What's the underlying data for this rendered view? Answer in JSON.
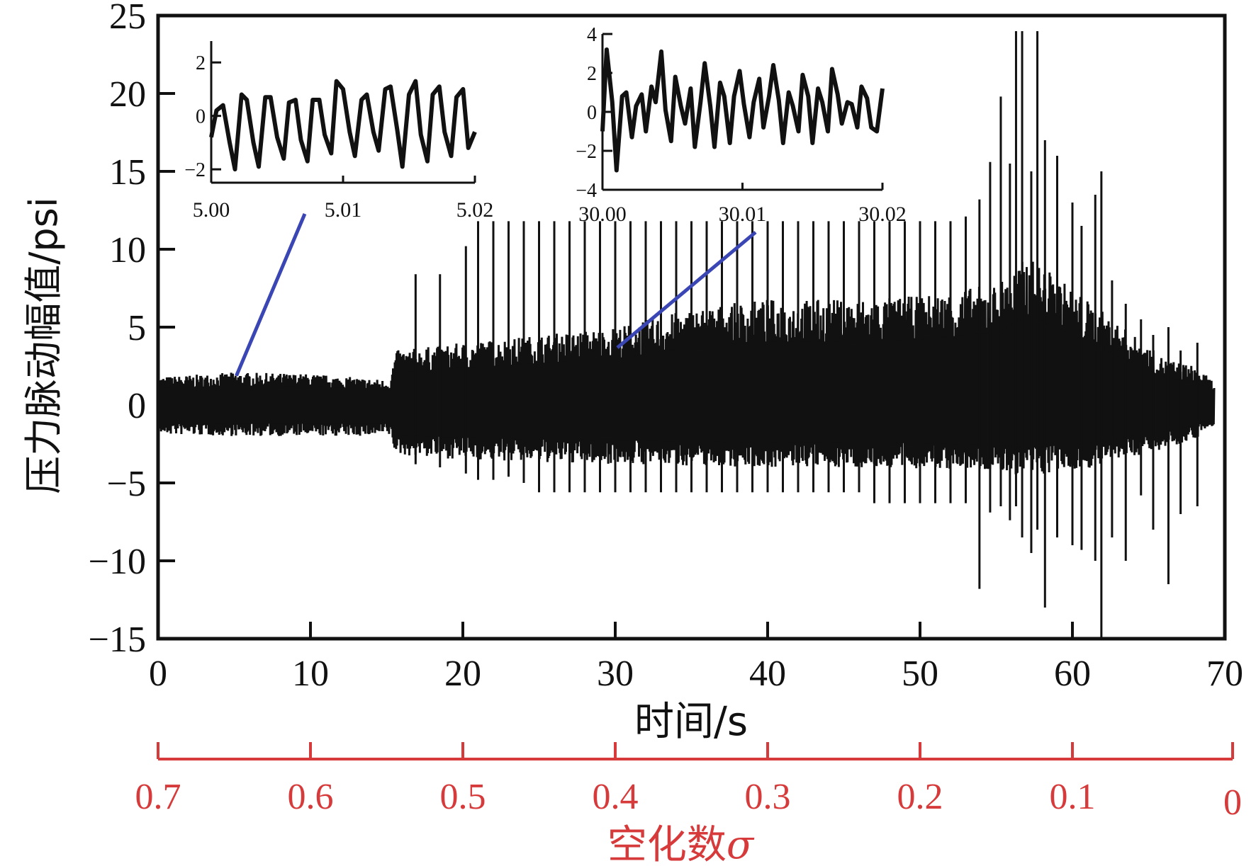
{
  "chart_data": {
    "type": "line",
    "xlabel": "时间/s",
    "ylabel": "压力脉动幅值/psi",
    "xlim": [
      0,
      70
    ],
    "ylim": [
      -15,
      25
    ],
    "x_ticks": [
      "0",
      "10",
      "20",
      "30",
      "40",
      "50",
      "60",
      "70"
    ],
    "y_ticks": [
      "25",
      "20",
      "15",
      "10",
      "5",
      "0",
      "−5",
      "−10",
      "−15"
    ],
    "grid": false,
    "signal_color": "#111111",
    "envelope": {
      "t": [
        0,
        5,
        10,
        15.2,
        15.6,
        20,
        25,
        30,
        35,
        40,
        45,
        50,
        53,
        55,
        57,
        58,
        60,
        62,
        64,
        66,
        68,
        69.3
      ],
      "upper": [
        1.8,
        2.1,
        2.0,
        1.6,
        3.5,
        4.0,
        4.5,
        5.0,
        6.2,
        6.8,
        6.8,
        7.0,
        7.5,
        7.8,
        9.5,
        9.0,
        7.5,
        6.0,
        4.5,
        3.0,
        2.5,
        1.5
      ],
      "lower": [
        -1.9,
        -2.0,
        -2.0,
        -2.0,
        -3.2,
        -3.5,
        -3.7,
        -3.8,
        -3.9,
        -4.0,
        -4.0,
        -4.1,
        -4.2,
        -4.3,
        -4.6,
        -4.5,
        -4.2,
        -3.9,
        -3.3,
        -2.8,
        -2.2,
        -1.3
      ]
    },
    "spikes": {
      "t": [
        16.9,
        18.5,
        20.2,
        21.0,
        22.0,
        23.0,
        24.0,
        25.0,
        26.0,
        27.0,
        28.0,
        29.0,
        30.0,
        31.0,
        32.0,
        33.0,
        34.0,
        35.0,
        36.0,
        37.0,
        38.0,
        39.0,
        40.0,
        41.0,
        42.0,
        43.0,
        44.0,
        45.0,
        46.0,
        47.0,
        48.0,
        49.0,
        50.0,
        51.0,
        52.0,
        53.0,
        53.9,
        54.6,
        55.3,
        55.9,
        56.3,
        56.7,
        57.3,
        57.7,
        58.2,
        59.0,
        60.0,
        60.6,
        61.5,
        61.9,
        62.6,
        63.5,
        64.5,
        65.3,
        66.3,
        67.1,
        68.2
      ],
      "upper": [
        8.4,
        8.4,
        10.2,
        11.8,
        11.8,
        11.8,
        11.8,
        11.8,
        11.8,
        11.8,
        11.8,
        11.8,
        11.8,
        11.8,
        11.8,
        11.8,
        11.8,
        11.8,
        11.8,
        11.8,
        11.8,
        11.8,
        11.8,
        11.8,
        11.8,
        11.8,
        11.8,
        11.8,
        11.8,
        11.8,
        11.8,
        11.8,
        11.8,
        11.8,
        11.8,
        12.1,
        13.2,
        15.6,
        19.8,
        15.5,
        24.0,
        24.0,
        15.0,
        24.0,
        17.0,
        16.0,
        13.0,
        11.5,
        13.5,
        15.0,
        8.0,
        6.5,
        5.5,
        4.5,
        5.0,
        3.5,
        4.0
      ],
      "lower": [
        -3.8,
        -4.0,
        -4.4,
        -4.8,
        -4.8,
        -4.6,
        -5.0,
        -5.6,
        -5.6,
        -5.6,
        -5.6,
        -5.6,
        -5.6,
        -5.6,
        -5.6,
        -5.6,
        -5.6,
        -5.6,
        -5.6,
        -5.6,
        -5.6,
        -5.6,
        -5.6,
        -5.6,
        -5.6,
        -5.6,
        -5.6,
        -5.6,
        -5.6,
        -6.3,
        -6.3,
        -6.3,
        -6.3,
        -6.3,
        -6.3,
        -6.3,
        -11.8,
        -6.9,
        -6.5,
        -7.4,
        -6.5,
        -8.5,
        -9.5,
        -8.0,
        -13.0,
        -8.5,
        -9.0,
        -9.3,
        -10.0,
        -14.9,
        -8.5,
        -10.0,
        -5.8,
        -8.0,
        -11.5,
        -7.0,
        -6.5
      ]
    },
    "insets": [
      {
        "xlim": [
          5.0,
          5.02
        ],
        "ylim": [
          -2.5,
          2.8
        ],
        "x_ticks": [
          "5.00",
          "5.01",
          "5.02"
        ],
        "y_ticks": [
          "2",
          "0",
          "−2"
        ],
        "y_tick_values": [
          2,
          0,
          -2
        ],
        "source_time": 5,
        "source_value": 2.2,
        "x": [
          5.0,
          5.0004,
          5.0009,
          5.0014,
          5.0018,
          5.0023,
          5.0027,
          5.0032,
          5.0036,
          5.0041,
          5.0045,
          5.005,
          5.0055,
          5.0059,
          5.0064,
          5.0068,
          5.0073,
          5.0077,
          5.0082,
          5.0086,
          5.0091,
          5.0095,
          5.01,
          5.0105,
          5.0109,
          5.0114,
          5.0118,
          5.0123,
          5.0127,
          5.0132,
          5.0136,
          5.0141,
          5.0145,
          5.015,
          5.0155,
          5.0159,
          5.0164,
          5.0168,
          5.0173,
          5.0177,
          5.0182,
          5.0186,
          5.0191,
          5.0195,
          5.02
        ],
        "values": [
          -0.8,
          0.2,
          0.4,
          -1.0,
          -2.0,
          0.8,
          0.6,
          -1.0,
          -1.9,
          0.7,
          0.7,
          -0.8,
          -1.6,
          0.5,
          0.6,
          -0.9,
          -1.7,
          0.6,
          0.6,
          -0.7,
          -1.4,
          1.3,
          1.0,
          -0.6,
          -1.5,
          0.6,
          0.8,
          -0.6,
          -1.3,
          1.0,
          1.1,
          -0.5,
          -1.9,
          0.8,
          1.3,
          -0.7,
          -1.7,
          0.8,
          1.1,
          -0.6,
          -1.5,
          0.7,
          1.0,
          -1.2,
          -0.6
        ]
      },
      {
        "xlim": [
          30.0,
          30.02
        ],
        "ylim": [
          -4,
          4
        ],
        "x_ticks": [
          "30.00",
          "30.01",
          "30.02"
        ],
        "y_ticks": [
          "4",
          "2",
          "0",
          "−2",
          "−4"
        ],
        "y_tick_values": [
          4,
          2,
          0,
          -2,
          -4
        ],
        "source_time": 30,
        "source_value": 4.0,
        "x": [
          30.0,
          30.0003,
          30.0007,
          30.001,
          30.0014,
          30.0017,
          30.0021,
          30.0024,
          30.0028,
          30.0031,
          30.0035,
          30.0038,
          30.0042,
          30.0045,
          30.0049,
          30.0052,
          30.0056,
          30.0059,
          30.0063,
          30.0066,
          30.007,
          30.0073,
          30.0077,
          30.008,
          30.0084,
          30.0087,
          30.0091,
          30.0094,
          30.0098,
          30.0101,
          30.0105,
          30.0108,
          30.0112,
          30.0115,
          30.0119,
          30.0122,
          30.0126,
          30.0129,
          30.0133,
          30.0136,
          30.014,
          30.0143,
          30.0147,
          30.015,
          30.0154,
          30.0157,
          30.0161,
          30.0164,
          30.0168,
          30.0171,
          30.0175,
          30.0178,
          30.0182,
          30.0185,
          30.0189,
          30.0192,
          30.0196,
          30.02
        ],
        "values": [
          -1.0,
          3.2,
          0.5,
          -3.0,
          0.8,
          1.0,
          -1.3,
          0.3,
          0.9,
          -1.0,
          1.3,
          0.5,
          3.1,
          0.1,
          -1.5,
          1.8,
          0.3,
          -0.6,
          1.2,
          -1.8,
          0.5,
          2.5,
          0.3,
          -1.8,
          1.5,
          0.8,
          -1.6,
          0.8,
          2.1,
          0.4,
          -1.3,
          0.5,
          1.7,
          -0.8,
          0.8,
          2.4,
          0.6,
          -1.6,
          1.0,
          0.3,
          -1.0,
          1.9,
          0.8,
          -1.6,
          1.2,
          0.5,
          -1.0,
          2.2,
          0.9,
          -0.6,
          0.5,
          0.4,
          -0.8,
          1.3,
          0.7,
          -0.8,
          -1.0,
          1.2
        ]
      }
    ],
    "secondary_axis": {
      "label": "空化数σ",
      "label_text": "空化数",
      "label_symbol": "σ",
      "ticks": [
        "0.7",
        "0.6",
        "0.5",
        "0.4",
        "0.3",
        "0.2",
        "0.1",
        "0"
      ],
      "tick_times": [
        0,
        10,
        20,
        30,
        40,
        50,
        60,
        70
      ],
      "color": "#d63a3a"
    },
    "callout_color": "#3a46b4"
  }
}
